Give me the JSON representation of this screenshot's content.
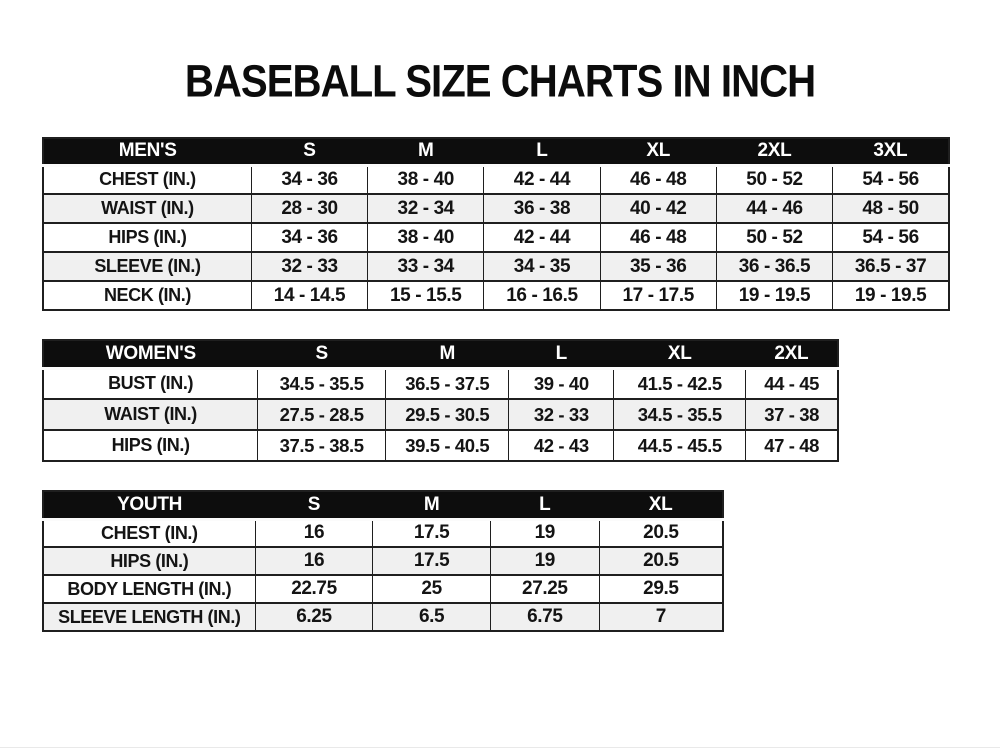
{
  "title": "BASEBALL SIZE CHARTS IN INCH",
  "colors": {
    "header_bg": "#0d0d0d",
    "header_text": "#ffffff",
    "alt_row_bg": "#f0f0f0",
    "border": "#1f1f1f",
    "text": "#141414",
    "page_bg": "#ffffff"
  },
  "tables": [
    {
      "name": "mens",
      "header": [
        "MEN'S",
        "S",
        "M",
        "L",
        "XL",
        "2XL",
        "3XL"
      ],
      "rows": [
        [
          "CHEST (IN.)",
          "34 - 36",
          "38 - 40",
          "42 - 44",
          "46 - 48",
          "50 - 52",
          "54 - 56"
        ],
        [
          "WAIST (IN.)",
          "28 - 30",
          "32 - 34",
          "36 - 38",
          "40 - 42",
          "44 - 46",
          "48 - 50"
        ],
        [
          "HIPS (IN.)",
          "34 - 36",
          "38 - 40",
          "42 - 44",
          "46 - 48",
          "50 - 52",
          "54 - 56"
        ],
        [
          "SLEEVE (IN.)",
          "32 - 33",
          "33 - 34",
          "34 - 35",
          "35 - 36",
          "36 - 36.5",
          "36.5 - 37"
        ],
        [
          "NECK (IN.)",
          "14 - 14.5",
          "15 - 15.5",
          "16 - 16.5",
          "17 - 17.5",
          "19 - 19.5",
          "19 - 19.5"
        ]
      ]
    },
    {
      "name": "womens",
      "header": [
        "WOMEN'S",
        "S",
        "M",
        "L",
        "XL",
        "2XL"
      ],
      "rows": [
        [
          "BUST (IN.)",
          "34.5 - 35.5",
          "36.5 - 37.5",
          "39 - 40",
          "41.5 - 42.5",
          "44 - 45"
        ],
        [
          "WAIST (IN.)",
          "27.5 - 28.5",
          "29.5 - 30.5",
          "32 - 33",
          "34.5 - 35.5",
          "37 - 38"
        ],
        [
          "HIPS (IN.)",
          "37.5 - 38.5",
          "39.5 - 40.5",
          "42 - 43",
          "44.5 - 45.5",
          "47 - 48"
        ]
      ]
    },
    {
      "name": "youth",
      "header": [
        "YOUTH",
        "S",
        "M",
        "L",
        "XL"
      ],
      "rows": [
        [
          "CHEST (IN.)",
          "16",
          "17.5",
          "19",
          "20.5"
        ],
        [
          "HIPS (IN.)",
          "16",
          "17.5",
          "19",
          "20.5"
        ],
        [
          "BODY LENGTH (IN.)",
          "22.75",
          "25",
          "27.25",
          "29.5"
        ],
        [
          "SLEEVE LENGTH (IN.)",
          "6.25",
          "6.5",
          "6.75",
          "7"
        ]
      ]
    }
  ]
}
